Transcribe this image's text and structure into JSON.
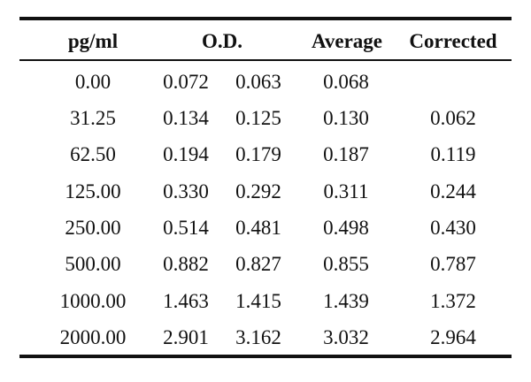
{
  "table": {
    "headers": {
      "concentration": "pg/ml",
      "od": "O.D.",
      "average": "Average",
      "corrected": "Corrected"
    },
    "rows": [
      {
        "concentration": "0.00",
        "od1": "0.072",
        "od2": "0.063",
        "average": "0.068",
        "corrected": ""
      },
      {
        "concentration": "31.25",
        "od1": "0.134",
        "od2": "0.125",
        "average": "0.130",
        "corrected": "0.062"
      },
      {
        "concentration": "62.50",
        "od1": "0.194",
        "od2": "0.179",
        "average": "0.187",
        "corrected": "0.119"
      },
      {
        "concentration": "125.00",
        "od1": "0.330",
        "od2": "0.292",
        "average": "0.311",
        "corrected": "0.244"
      },
      {
        "concentration": "250.00",
        "od1": "0.514",
        "od2": "0.481",
        "average": "0.498",
        "corrected": "0.430"
      },
      {
        "concentration": "500.00",
        "od1": "0.882",
        "od2": "0.827",
        "average": "0.855",
        "corrected": "0.787"
      },
      {
        "concentration": "1000.00",
        "od1": "1.463",
        "od2": "1.415",
        "average": "1.439",
        "corrected": "1.372"
      },
      {
        "concentration": "2000.00",
        "od1": "2.901",
        "od2": "3.162",
        "average": "3.032",
        "corrected": "2.964"
      }
    ]
  }
}
